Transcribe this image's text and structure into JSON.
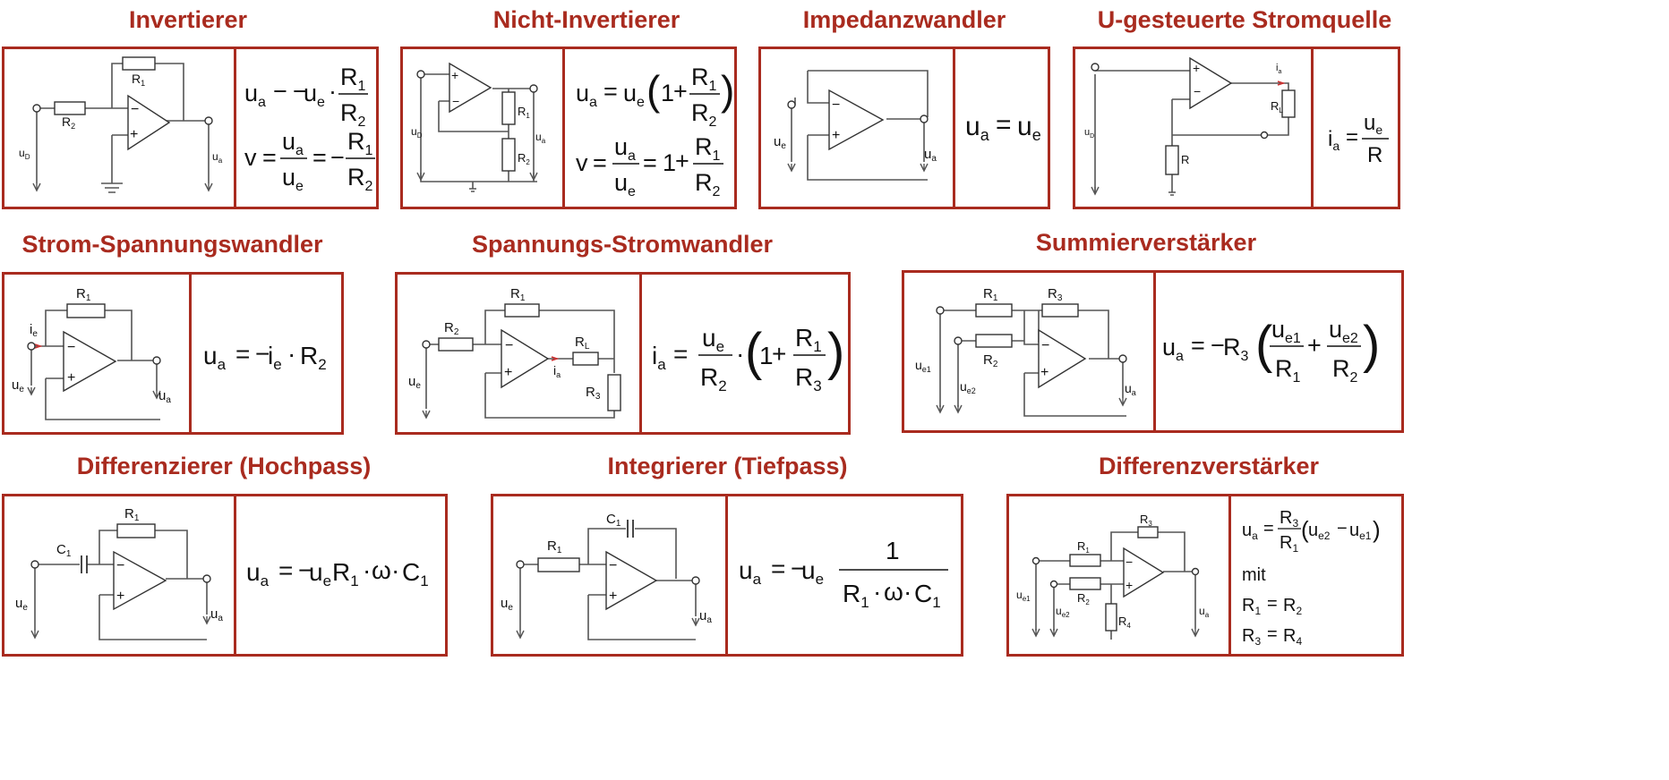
{
  "titles": {
    "invertierer": "Invertierer",
    "nicht_invertierer": "Nicht-Invertierer",
    "impedanzwandler": "Impedanzwandler",
    "u_stromquelle": "U-gesteuerte Stromquelle",
    "strom_spannung": "Strom-Spannungswandler",
    "spannung_strom": "Spannungs-Stromwandler",
    "summierer": "Summierverstärker",
    "differenzierer": "Differenzierer (Hochpass)",
    "integrierer": "Integrierer (Tiefpass)",
    "differenzverstaerker": "Differenzverstärker"
  },
  "labels": {
    "R": "R",
    "C": "C",
    "u": "u",
    "i": "i",
    "v": "v",
    "sub_1": "1",
    "sub_2": "2",
    "sub_3": "3",
    "sub_4": "4",
    "sub_L": "L",
    "sub_a": "a",
    "sub_e": "e",
    "sub_D": "D",
    "sub_e1": "e1",
    "sub_e2": "e2",
    "plus": "+",
    "minus": "−",
    "mit": "mit"
  },
  "colors": {
    "accent": "#a92b1f"
  }
}
